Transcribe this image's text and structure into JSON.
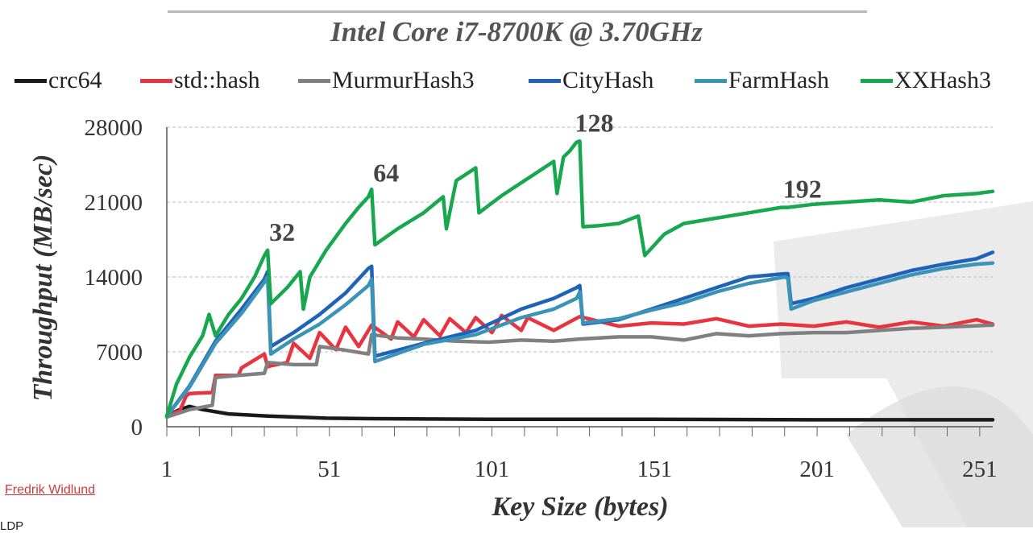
{
  "chart_data": {
    "type": "line",
    "title": "Intel Core i7-8700K @ 3.70GHz",
    "xlabel": "Key Size (bytes)",
    "ylabel": "Throughput (MB/sec)",
    "xlim": [
      1,
      255
    ],
    "ylim": [
      0,
      28000
    ],
    "x_ticks": [
      "1",
      "51",
      "101",
      "151",
      "201",
      "251"
    ],
    "x_tick_values": [
      1,
      51,
      101,
      151,
      201,
      251
    ],
    "y_ticks": [
      "0",
      "7000",
      "14000",
      "21000",
      "28000"
    ],
    "y_tick_values": [
      0,
      7000,
      14000,
      21000,
      28000
    ],
    "grid": "horizontal dashed",
    "legend_position": "top",
    "annotations": [
      {
        "text": "32",
        "x": 32,
        "y": 16500
      },
      {
        "text": "64",
        "x": 64,
        "y": 22000
      },
      {
        "text": "128",
        "x": 128,
        "y": 26700
      },
      {
        "text": "192",
        "x": 192,
        "y": 20500
      }
    ],
    "series": [
      {
        "name": "crc64",
        "color": "#1a1a1a",
        "points": [
          [
            1,
            1000
          ],
          [
            5,
            1600
          ],
          [
            8,
            1900
          ],
          [
            12,
            1600
          ],
          [
            20,
            1200
          ],
          [
            32,
            1000
          ],
          [
            50,
            800
          ],
          [
            64,
            750
          ],
          [
            100,
            700
          ],
          [
            150,
            700
          ],
          [
            200,
            650
          ],
          [
            255,
            650
          ]
        ]
      },
      {
        "name": "std::hash",
        "color": "#e8343f",
        "points": [
          [
            1,
            1000
          ],
          [
            5,
            1500
          ],
          [
            7,
            2900
          ],
          [
            8,
            3100
          ],
          [
            15,
            3200
          ],
          [
            16,
            4800
          ],
          [
            23,
            4800
          ],
          [
            24,
            5500
          ],
          [
            31,
            6800
          ],
          [
            32,
            5600
          ],
          [
            33,
            5700
          ],
          [
            38,
            6000
          ],
          [
            40,
            7800
          ],
          [
            45,
            6400
          ],
          [
            48,
            8800
          ],
          [
            53,
            7200
          ],
          [
            56,
            9300
          ],
          [
            60,
            7500
          ],
          [
            64,
            9500
          ],
          [
            70,
            8200
          ],
          [
            72,
            9800
          ],
          [
            77,
            8400
          ],
          [
            80,
            10000
          ],
          [
            85,
            8500
          ],
          [
            88,
            10100
          ],
          [
            93,
            8800
          ],
          [
            96,
            10200
          ],
          [
            101,
            8800
          ],
          [
            104,
            10400
          ],
          [
            110,
            9000
          ],
          [
            112,
            10200
          ],
          [
            120,
            9000
          ],
          [
            128,
            10300
          ],
          [
            140,
            9400
          ],
          [
            150,
            9700
          ],
          [
            160,
            9600
          ],
          [
            170,
            10100
          ],
          [
            180,
            9400
          ],
          [
            190,
            9600
          ],
          [
            200,
            9400
          ],
          [
            210,
            9800
          ],
          [
            220,
            9300
          ],
          [
            230,
            9800
          ],
          [
            240,
            9400
          ],
          [
            250,
            10000
          ],
          [
            255,
            9600
          ]
        ]
      },
      {
        "name": "MurmurHash3",
        "color": "#808080",
        "points": [
          [
            1,
            900
          ],
          [
            8,
            1600
          ],
          [
            15,
            2000
          ],
          [
            16,
            4600
          ],
          [
            23,
            4800
          ],
          [
            31,
            5000
          ],
          [
            32,
            6000
          ],
          [
            40,
            5800
          ],
          [
            47,
            5800
          ],
          [
            48,
            7500
          ],
          [
            55,
            7200
          ],
          [
            63,
            6800
          ],
          [
            64,
            8600
          ],
          [
            72,
            8300
          ],
          [
            80,
            8200
          ],
          [
            90,
            8000
          ],
          [
            100,
            7900
          ],
          [
            110,
            8100
          ],
          [
            120,
            8000
          ],
          [
            128,
            8200
          ],
          [
            140,
            8400
          ],
          [
            150,
            8400
          ],
          [
            160,
            8100
          ],
          [
            170,
            8700
          ],
          [
            180,
            8500
          ],
          [
            190,
            8700
          ],
          [
            200,
            8800
          ],
          [
            210,
            8800
          ],
          [
            220,
            9000
          ],
          [
            230,
            9200
          ],
          [
            240,
            9300
          ],
          [
            255,
            9500
          ]
        ]
      },
      {
        "name": "CityHash",
        "color": "#1f63b8",
        "points": [
          [
            1,
            1000
          ],
          [
            8,
            3800
          ],
          [
            16,
            8000
          ],
          [
            24,
            11000
          ],
          [
            31,
            13800
          ],
          [
            32,
            14500
          ],
          [
            33,
            7500
          ],
          [
            40,
            8800
          ],
          [
            48,
            10500
          ],
          [
            56,
            12500
          ],
          [
            63,
            14800
          ],
          [
            64,
            15000
          ],
          [
            65,
            6600
          ],
          [
            80,
            7800
          ],
          [
            96,
            9000
          ],
          [
            110,
            11000
          ],
          [
            120,
            12000
          ],
          [
            127,
            13000
          ],
          [
            128,
            13200
          ],
          [
            129,
            9600
          ],
          [
            140,
            10000
          ],
          [
            150,
            11000
          ],
          [
            160,
            12000
          ],
          [
            170,
            13000
          ],
          [
            180,
            14000
          ],
          [
            191,
            14300
          ],
          [
            192,
            14300
          ],
          [
            193,
            11500
          ],
          [
            200,
            12000
          ],
          [
            210,
            13000
          ],
          [
            220,
            13800
          ],
          [
            230,
            14600
          ],
          [
            240,
            15200
          ],
          [
            250,
            15700
          ],
          [
            255,
            16300
          ]
        ]
      },
      {
        "name": "FarmHash",
        "color": "#3b93b8",
        "points": [
          [
            1,
            1000
          ],
          [
            8,
            3700
          ],
          [
            16,
            7800
          ],
          [
            24,
            10600
          ],
          [
            31,
            13500
          ],
          [
            32,
            14000
          ],
          [
            33,
            6800
          ],
          [
            40,
            8200
          ],
          [
            48,
            9600
          ],
          [
            56,
            11400
          ],
          [
            63,
            13200
          ],
          [
            64,
            13800
          ],
          [
            65,
            6100
          ],
          [
            80,
            7700
          ],
          [
            96,
            8600
          ],
          [
            110,
            10200
          ],
          [
            120,
            11000
          ],
          [
            127,
            12000
          ],
          [
            128,
            12600
          ],
          [
            129,
            9700
          ],
          [
            140,
            10100
          ],
          [
            150,
            10900
          ],
          [
            160,
            11600
          ],
          [
            170,
            12600
          ],
          [
            180,
            13400
          ],
          [
            191,
            14000
          ],
          [
            192,
            13900
          ],
          [
            193,
            11000
          ],
          [
            200,
            11800
          ],
          [
            210,
            12600
          ],
          [
            220,
            13400
          ],
          [
            230,
            14200
          ],
          [
            240,
            14800
          ],
          [
            250,
            15200
          ],
          [
            255,
            15300
          ]
        ]
      },
      {
        "name": "XXHash3",
        "color": "#17a84f",
        "points": [
          [
            1,
            1000
          ],
          [
            4,
            4000
          ],
          [
            8,
            6500
          ],
          [
            12,
            8500
          ],
          [
            14,
            10500
          ],
          [
            16,
            8500
          ],
          [
            20,
            10500
          ],
          [
            24,
            12000
          ],
          [
            28,
            14000
          ],
          [
            31,
            16000
          ],
          [
            32,
            16500
          ],
          [
            33,
            11500
          ],
          [
            38,
            13000
          ],
          [
            42,
            14500
          ],
          [
            43,
            11000
          ],
          [
            45,
            14000
          ],
          [
            50,
            16500
          ],
          [
            56,
            19000
          ],
          [
            60,
            20500
          ],
          [
            63,
            21500
          ],
          [
            64,
            22200
          ],
          [
            65,
            17000
          ],
          [
            72,
            18500
          ],
          [
            80,
            20000
          ],
          [
            86,
            21500
          ],
          [
            87,
            18500
          ],
          [
            90,
            23000
          ],
          [
            96,
            24200
          ],
          [
            97,
            20000
          ],
          [
            104,
            21600
          ],
          [
            112,
            23200
          ],
          [
            120,
            24800
          ],
          [
            121,
            21800
          ],
          [
            123,
            25200
          ],
          [
            125,
            25800
          ],
          [
            126,
            26200
          ],
          [
            127,
            26600
          ],
          [
            128,
            26700
          ],
          [
            129,
            18700
          ],
          [
            134,
            18800
          ],
          [
            140,
            19000
          ],
          [
            146,
            19700
          ],
          [
            148,
            16000
          ],
          [
            154,
            18000
          ],
          [
            160,
            19000
          ],
          [
            170,
            19500
          ],
          [
            180,
            20000
          ],
          [
            190,
            20500
          ],
          [
            192,
            20500
          ],
          [
            200,
            20800
          ],
          [
            210,
            21000
          ],
          [
            220,
            21200
          ],
          [
            230,
            21000
          ],
          [
            240,
            21600
          ],
          [
            250,
            21800
          ],
          [
            255,
            22000
          ]
        ]
      }
    ]
  },
  "legend": [
    {
      "label": "crc64",
      "color": "#1a1a1a"
    },
    {
      "label": "std::hash",
      "color": "#e8343f"
    },
    {
      "label": "MurmurHash3",
      "color": "#808080"
    },
    {
      "label": "CityHash",
      "color": "#1f63b8"
    },
    {
      "label": "FarmHash",
      "color": "#3b93b8"
    },
    {
      "label": "XXHash3",
      "color": "#17a84f"
    }
  ],
  "credit": "Fredrik Widlund",
  "cut_text": "LDP"
}
